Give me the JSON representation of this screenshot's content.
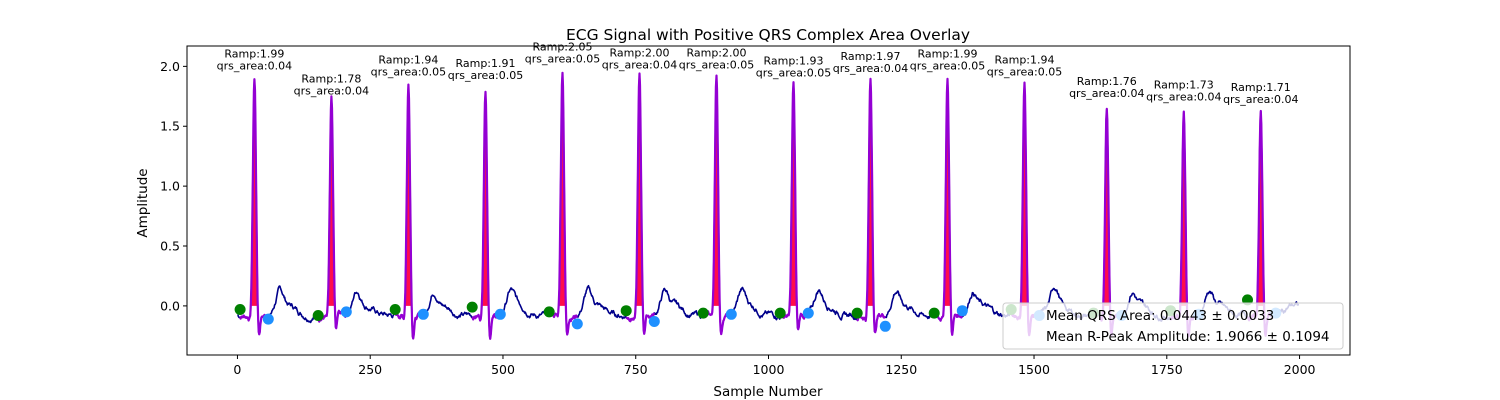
{
  "chart_data": {
    "type": "line",
    "title": "ECG Signal with Positive QRS Complex Area Overlay",
    "xlabel": "Sample Number",
    "ylabel": "Amplitude",
    "xlim": [
      -95,
      2095
    ],
    "ylim": [
      -0.41,
      2.17
    ],
    "xticks": [
      0,
      250,
      500,
      750,
      1000,
      1250,
      1500,
      1750,
      2000
    ],
    "xtick_labels": [
      "0",
      "250",
      "500",
      "750",
      "1000",
      "1250",
      "1500",
      "1750",
      "2000"
    ],
    "yticks": [
      0.0,
      0.5,
      1.0,
      1.5,
      2.0
    ],
    "ytick_labels": [
      "0.0",
      "0.5",
      "1.0",
      "1.5",
      "2.0"
    ],
    "grid": false,
    "colors": {
      "signal": "#00008b",
      "qrs_line": "#9400d3",
      "qrs_fill": "#ff0040",
      "onset_marker": "#008000",
      "offset_marker": "#1e90ff"
    },
    "beats": [
      {
        "r_x": 32,
        "r_amp": 1.99,
        "ramp_label": "Ramp:1.99",
        "area_label": "qrs_area:0.04",
        "onset_x": 5,
        "onset_y": -0.03,
        "offset_x": 58,
        "offset_y": -0.11
      },
      {
        "r_x": 177,
        "r_amp": 1.78,
        "ramp_label": "Ramp:1.78",
        "area_label": "qrs_area:0.04",
        "onset_x": 152,
        "onset_y": -0.08,
        "offset_x": 205,
        "offset_y": -0.05
      },
      {
        "r_x": 322,
        "r_amp": 1.94,
        "ramp_label": "Ramp:1.94",
        "area_label": "qrs_area:0.05",
        "onset_x": 297,
        "onset_y": -0.03,
        "offset_x": 350,
        "offset_y": -0.07
      },
      {
        "r_x": 467,
        "r_amp": 1.91,
        "ramp_label": "Ramp:1.91",
        "area_label": "qrs_area:0.05",
        "onset_x": 442,
        "onset_y": -0.01,
        "offset_x": 495,
        "offset_y": -0.07
      },
      {
        "r_x": 612,
        "r_amp": 2.05,
        "ramp_label": "Ramp:2.05",
        "area_label": "qrs_area:0.05",
        "onset_x": 587,
        "onset_y": -0.05,
        "offset_x": 640,
        "offset_y": -0.15
      },
      {
        "r_x": 757,
        "r_amp": 2.0,
        "ramp_label": "Ramp:2.00",
        "area_label": "qrs_area:0.04",
        "onset_x": 732,
        "onset_y": -0.04,
        "offset_x": 785,
        "offset_y": -0.13
      },
      {
        "r_x": 902,
        "r_amp": 2.0,
        "ramp_label": "Ramp:2.00",
        "area_label": "qrs_area:0.05",
        "onset_x": 877,
        "onset_y": -0.06,
        "offset_x": 930,
        "offset_y": -0.07
      },
      {
        "r_x": 1047,
        "r_amp": 1.93,
        "ramp_label": "Ramp:1.93",
        "area_label": "qrs_area:0.05",
        "onset_x": 1022,
        "onset_y": -0.06,
        "offset_x": 1075,
        "offset_y": -0.06
      },
      {
        "r_x": 1192,
        "r_amp": 1.97,
        "ramp_label": "Ramp:1.97",
        "area_label": "qrs_area:0.04",
        "onset_x": 1167,
        "onset_y": -0.06,
        "offset_x": 1220,
        "offset_y": -0.17
      },
      {
        "r_x": 1337,
        "r_amp": 1.99,
        "ramp_label": "Ramp:1.99",
        "area_label": "qrs_area:0.05",
        "onset_x": 1312,
        "onset_y": -0.06,
        "offset_x": 1365,
        "offset_y": -0.04
      },
      {
        "r_x": 1482,
        "r_amp": 1.94,
        "ramp_label": "Ramp:1.94",
        "area_label": "qrs_area:0.05",
        "onset_x": 1457,
        "onset_y": -0.03,
        "offset_x": 1510,
        "offset_y": -0.08
      },
      {
        "r_x": 1637,
        "r_amp": 1.76,
        "ramp_label": "Ramp:1.76",
        "area_label": "qrs_area:0.04",
        "onset_x": 1612,
        "onset_y": -0.06,
        "offset_x": 1665,
        "offset_y": -0.08
      },
      {
        "r_x": 1782,
        "r_amp": 1.73,
        "ramp_label": "Ramp:1.73",
        "area_label": "qrs_area:0.04",
        "onset_x": 1757,
        "onset_y": -0.04,
        "offset_x": 1810,
        "offset_y": -0.07
      },
      {
        "r_x": 1927,
        "r_amp": 1.71,
        "ramp_label": "Ramp:1.71",
        "area_label": "qrs_area:0.04",
        "onset_x": 1902,
        "onset_y": 0.05,
        "offset_x": 1955,
        "offset_y": -0.06
      }
    ],
    "legend": {
      "placement": "lower-right",
      "entries": [
        "Mean QRS Area: 0.0443 ± 0.0033",
        "Mean R-Peak Amplitude: 1.9066 ± 0.1094"
      ]
    }
  }
}
